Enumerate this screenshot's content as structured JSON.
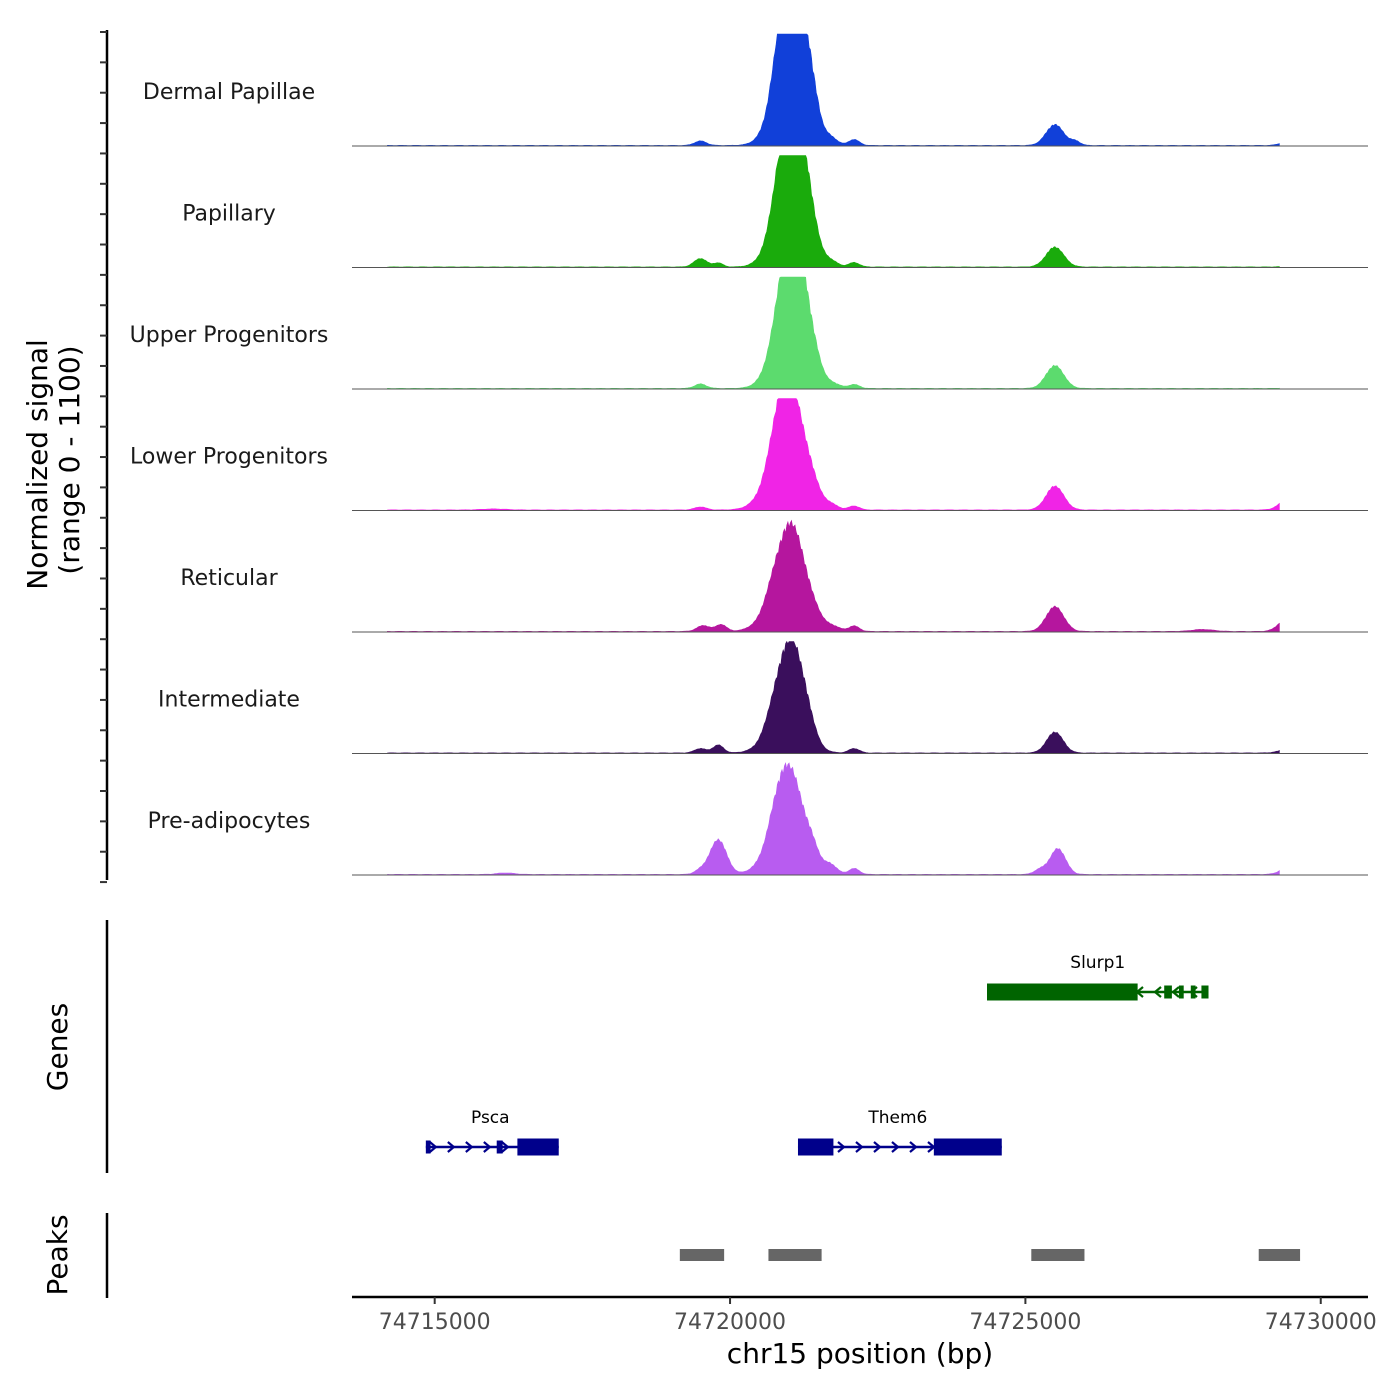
{
  "chart_data": {
    "type": "area",
    "title": "",
    "chromosome": "chr15",
    "xlabel": "chr15 position (bp)",
    "ylabel_line1": "Normalized signal",
    "ylabel_line2": "(range 0 - 1100)",
    "ylim": [
      0,
      1100
    ],
    "xlim": [
      74713600,
      74730800
    ],
    "x_ticks": [
      74715000,
      74720000,
      74725000,
      74730000
    ],
    "x_tick_labels": [
      "74715000",
      "74720000",
      "74725000",
      "74730000"
    ],
    "series": [
      {
        "name": "Dermal Papillae",
        "color": "#1140d9",
        "peaks": [
          {
            "pos": 74721100,
            "height": 1100,
            "width": 200
          },
          {
            "pos": 74721000,
            "height": 750,
            "width": 260
          },
          {
            "pos": 74720800,
            "height": 210,
            "width": 120
          },
          {
            "pos": 74721400,
            "height": 200,
            "width": 110
          },
          {
            "pos": 74721700,
            "height": 70,
            "width": 120
          },
          {
            "pos": 74722100,
            "height": 60,
            "width": 90
          },
          {
            "pos": 74719500,
            "height": 45,
            "width": 100
          },
          {
            "pos": 74725500,
            "height": 210,
            "width": 150
          },
          {
            "pos": 74725850,
            "height": 40,
            "width": 80
          },
          {
            "pos": 74729500,
            "height": 55,
            "width": 140
          }
        ]
      },
      {
        "name": "Papillary",
        "color": "#1aab0c",
        "peaks": [
          {
            "pos": 74721100,
            "height": 1050,
            "width": 200
          },
          {
            "pos": 74721000,
            "height": 720,
            "width": 260
          },
          {
            "pos": 74720800,
            "height": 160,
            "width": 130
          },
          {
            "pos": 74721400,
            "height": 120,
            "width": 110
          },
          {
            "pos": 74721700,
            "height": 55,
            "width": 120
          },
          {
            "pos": 74722100,
            "height": 45,
            "width": 90
          },
          {
            "pos": 74719500,
            "height": 85,
            "width": 110
          },
          {
            "pos": 74719800,
            "height": 40,
            "width": 80
          },
          {
            "pos": 74725500,
            "height": 200,
            "width": 150
          },
          {
            "pos": 74729500,
            "height": 15,
            "width": 120
          }
        ]
      },
      {
        "name": "Upper Progenitors",
        "color": "#5cdb6e",
        "peaks": [
          {
            "pos": 74721100,
            "height": 1020,
            "width": 200
          },
          {
            "pos": 74721000,
            "height": 700,
            "width": 260
          },
          {
            "pos": 74720800,
            "height": 100,
            "width": 130
          },
          {
            "pos": 74721450,
            "height": 120,
            "width": 120
          },
          {
            "pos": 74721750,
            "height": 45,
            "width": 120
          },
          {
            "pos": 74722100,
            "height": 40,
            "width": 90
          },
          {
            "pos": 74719500,
            "height": 45,
            "width": 100
          },
          {
            "pos": 74725500,
            "height": 230,
            "width": 150
          },
          {
            "pos": 74729500,
            "height": 12,
            "width": 120
          }
        ]
      },
      {
        "name": "Lower Progenitors",
        "color": "#f024e6",
        "peaks": [
          {
            "pos": 74721000,
            "height": 860,
            "width": 220
          },
          {
            "pos": 74720950,
            "height": 500,
            "width": 300
          },
          {
            "pos": 74720750,
            "height": 80,
            "width": 120
          },
          {
            "pos": 74721400,
            "height": 120,
            "width": 120
          },
          {
            "pos": 74721700,
            "height": 50,
            "width": 120
          },
          {
            "pos": 74722100,
            "height": 40,
            "width": 90
          },
          {
            "pos": 74719500,
            "height": 30,
            "width": 100
          },
          {
            "pos": 74725500,
            "height": 240,
            "width": 150
          },
          {
            "pos": 74729500,
            "height": 140,
            "width": 160
          },
          {
            "pos": 74716000,
            "height": 10,
            "width": 200
          }
        ]
      },
      {
        "name": "Reticular",
        "color": "#b5169e",
        "peaks": [
          {
            "pos": 74721050,
            "height": 690,
            "width": 220
          },
          {
            "pos": 74720950,
            "height": 420,
            "width": 300
          },
          {
            "pos": 74720700,
            "height": 80,
            "width": 120
          },
          {
            "pos": 74721450,
            "height": 70,
            "width": 130
          },
          {
            "pos": 74721750,
            "height": 45,
            "width": 120
          },
          {
            "pos": 74722100,
            "height": 55,
            "width": 90
          },
          {
            "pos": 74719550,
            "height": 60,
            "width": 110
          },
          {
            "pos": 74719850,
            "height": 70,
            "width": 90
          },
          {
            "pos": 74725500,
            "height": 250,
            "width": 150
          },
          {
            "pos": 74728000,
            "height": 20,
            "width": 180
          },
          {
            "pos": 74729500,
            "height": 190,
            "width": 160
          }
        ]
      },
      {
        "name": "Intermediate",
        "color": "#3a0f5c",
        "peaks": [
          {
            "pos": 74721050,
            "height": 760,
            "width": 210
          },
          {
            "pos": 74720950,
            "height": 420,
            "width": 280
          },
          {
            "pos": 74720700,
            "height": 80,
            "width": 120
          },
          {
            "pos": 74721350,
            "height": 70,
            "width": 110
          },
          {
            "pos": 74722100,
            "height": 45,
            "width": 90
          },
          {
            "pos": 74719500,
            "height": 45,
            "width": 100
          },
          {
            "pos": 74719800,
            "height": 80,
            "width": 90
          },
          {
            "pos": 74725500,
            "height": 210,
            "width": 140
          },
          {
            "pos": 74729500,
            "height": 50,
            "width": 160
          }
        ]
      },
      {
        "name": "Pre-adipocytes",
        "color": "#b85cf0",
        "peaks": [
          {
            "pos": 74721000,
            "height": 700,
            "width": 220
          },
          {
            "pos": 74720950,
            "height": 400,
            "width": 300
          },
          {
            "pos": 74719800,
            "height": 350,
            "width": 140
          },
          {
            "pos": 74720750,
            "height": 80,
            "width": 120
          },
          {
            "pos": 74721400,
            "height": 140,
            "width": 110
          },
          {
            "pos": 74721700,
            "height": 90,
            "width": 110
          },
          {
            "pos": 74722100,
            "height": 60,
            "width": 90
          },
          {
            "pos": 74719500,
            "height": 40,
            "width": 100
          },
          {
            "pos": 74725550,
            "height": 260,
            "width": 130
          },
          {
            "pos": 74725250,
            "height": 50,
            "width": 100
          },
          {
            "pos": 74729500,
            "height": 90,
            "width": 150
          },
          {
            "pos": 74716200,
            "height": 15,
            "width": 150
          }
        ]
      }
    ],
    "genes": [
      {
        "name": "Slurp1",
        "chrom_start": 74724350,
        "chrom_end": 74728100,
        "strand": "-",
        "row": 1,
        "color": "#006400",
        "exons": [
          [
            74724350,
            74726900
          ],
          [
            74727350,
            74727480
          ],
          [
            74727600,
            74727680
          ],
          [
            74727800,
            74727880
          ],
          [
            74727980,
            74728100
          ]
        ]
      },
      {
        "name": "Psca",
        "chrom_start": 74714850,
        "chrom_end": 74717100,
        "strand": "+",
        "row": 2,
        "color": "#00008b",
        "exons": [
          [
            74714850,
            74714930
          ],
          [
            74716050,
            74716150
          ],
          [
            74716400,
            74717100
          ]
        ]
      },
      {
        "name": "Them6",
        "chrom_start": 74721150,
        "chrom_end": 74724600,
        "strand": "+",
        "row": 2,
        "color": "#00008b",
        "exons": [
          [
            74721150,
            74721750
          ],
          [
            74723450,
            74724600
          ]
        ]
      }
    ],
    "peaks": [
      {
        "start": 74719150,
        "end": 74719900
      },
      {
        "start": 74720650,
        "end": 74721550
      },
      {
        "start": 74725100,
        "end": 74726000
      },
      {
        "start": 74728950,
        "end": 74729650
      }
    ],
    "panel_titles": [
      "Genes",
      "Peaks"
    ]
  }
}
